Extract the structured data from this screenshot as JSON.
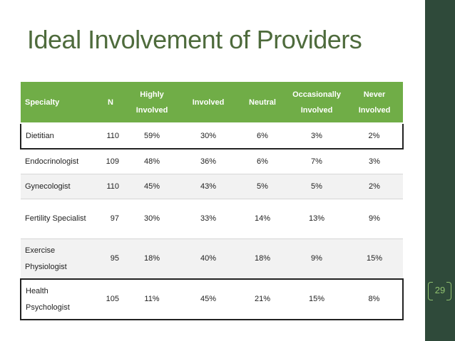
{
  "slide": {
    "title": "Ideal Involvement of Providers",
    "page_number": "29",
    "accent": "#70ad47",
    "title_color": "#4e6b3c",
    "sidebar_color": "#2f4a3a"
  },
  "table": {
    "headers": [
      "Specialty",
      "N",
      "Highly Involved",
      "Involved",
      "Neutral",
      "Occasionally Involved",
      "Never Involved"
    ],
    "rows": [
      {
        "specialty": "Dietitian",
        "n": "110",
        "highly": "59%",
        "involved": "30%",
        "neutral": "6%",
        "occasionally": "3%",
        "never": "2%"
      },
      {
        "specialty": "Endocrinologist",
        "n": "109",
        "highly": "48%",
        "involved": "36%",
        "neutral": "6%",
        "occasionally": "7%",
        "never": "3%"
      },
      {
        "specialty": "Gynecologist",
        "n": "110",
        "highly": "45%",
        "involved": "43%",
        "neutral": "5%",
        "occasionally": "5%",
        "never": "2%"
      },
      {
        "specialty": "Fertility Specialist",
        "n": "97",
        "highly": "30%",
        "involved": "33%",
        "neutral": "14%",
        "occasionally": "13%",
        "never": "9%"
      },
      {
        "specialty": "Exercise Physiologist",
        "n": "95",
        "highly": "18%",
        "involved": "40%",
        "neutral": "18%",
        "occasionally": "9%",
        "never": "15%"
      },
      {
        "specialty": "Health Psychologist",
        "n": "105",
        "highly": "11%",
        "involved": "45%",
        "neutral": "21%",
        "occasionally": "15%",
        "never": "8%"
      }
    ]
  }
}
